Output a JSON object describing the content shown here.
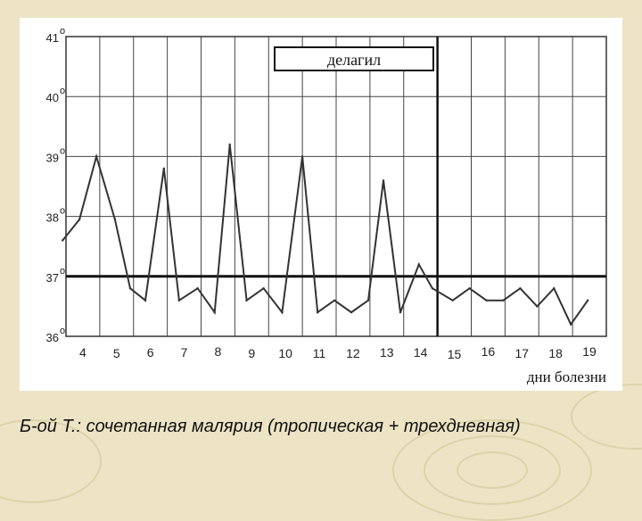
{
  "caption": "Б-ой Т.: сочетанная малярия (тропическая + трехдневная)",
  "drug_label": "делагил",
  "colors": {
    "background": "#ece4c4",
    "panel": "#ffffff",
    "line": "#333333",
    "grid": "#333333"
  },
  "chart_data": {
    "type": "line",
    "title": "",
    "xlabel": "дни болезни",
    "ylabel": "",
    "ylim": [
      36,
      41
    ],
    "xlim": [
      3.5,
      19.5
    ],
    "y_ticks": [
      "36",
      "37",
      "38",
      "39",
      "40",
      "41"
    ],
    "y_tick_suffix": "о",
    "x_ticks": [
      "4",
      "5",
      "6",
      "7",
      "8",
      "9",
      "10",
      "11",
      "12",
      "13",
      "14",
      "15",
      "16",
      "17",
      "18",
      "19"
    ],
    "reference_line": 37,
    "treatment_marker_day": 14.5,
    "grid": true,
    "series": [
      {
        "values": [
          [
            3.4,
            37.6
          ],
          [
            3.9,
            37.95
          ],
          [
            4.4,
            39.0
          ],
          [
            4.95,
            37.95
          ],
          [
            5.4,
            36.8
          ],
          [
            5.85,
            36.6
          ],
          [
            6.4,
            38.8
          ],
          [
            6.85,
            36.6
          ],
          [
            7.4,
            36.8
          ],
          [
            7.9,
            36.4
          ],
          [
            8.35,
            39.2
          ],
          [
            8.85,
            36.6
          ],
          [
            9.35,
            36.8
          ],
          [
            9.9,
            36.4
          ],
          [
            10.5,
            39.0
          ],
          [
            10.95,
            36.4
          ],
          [
            11.45,
            36.6
          ],
          [
            11.95,
            36.4
          ],
          [
            12.45,
            36.6
          ],
          [
            12.9,
            38.6
          ],
          [
            13.4,
            36.4
          ],
          [
            13.95,
            37.2
          ],
          [
            14.35,
            36.8
          ],
          [
            14.95,
            36.6
          ],
          [
            15.45,
            36.8
          ],
          [
            15.95,
            36.6
          ],
          [
            16.45,
            36.6
          ],
          [
            16.95,
            36.8
          ],
          [
            17.45,
            36.5
          ],
          [
            17.95,
            36.8
          ],
          [
            18.45,
            36.2
          ],
          [
            18.95,
            36.6
          ]
        ]
      }
    ]
  }
}
